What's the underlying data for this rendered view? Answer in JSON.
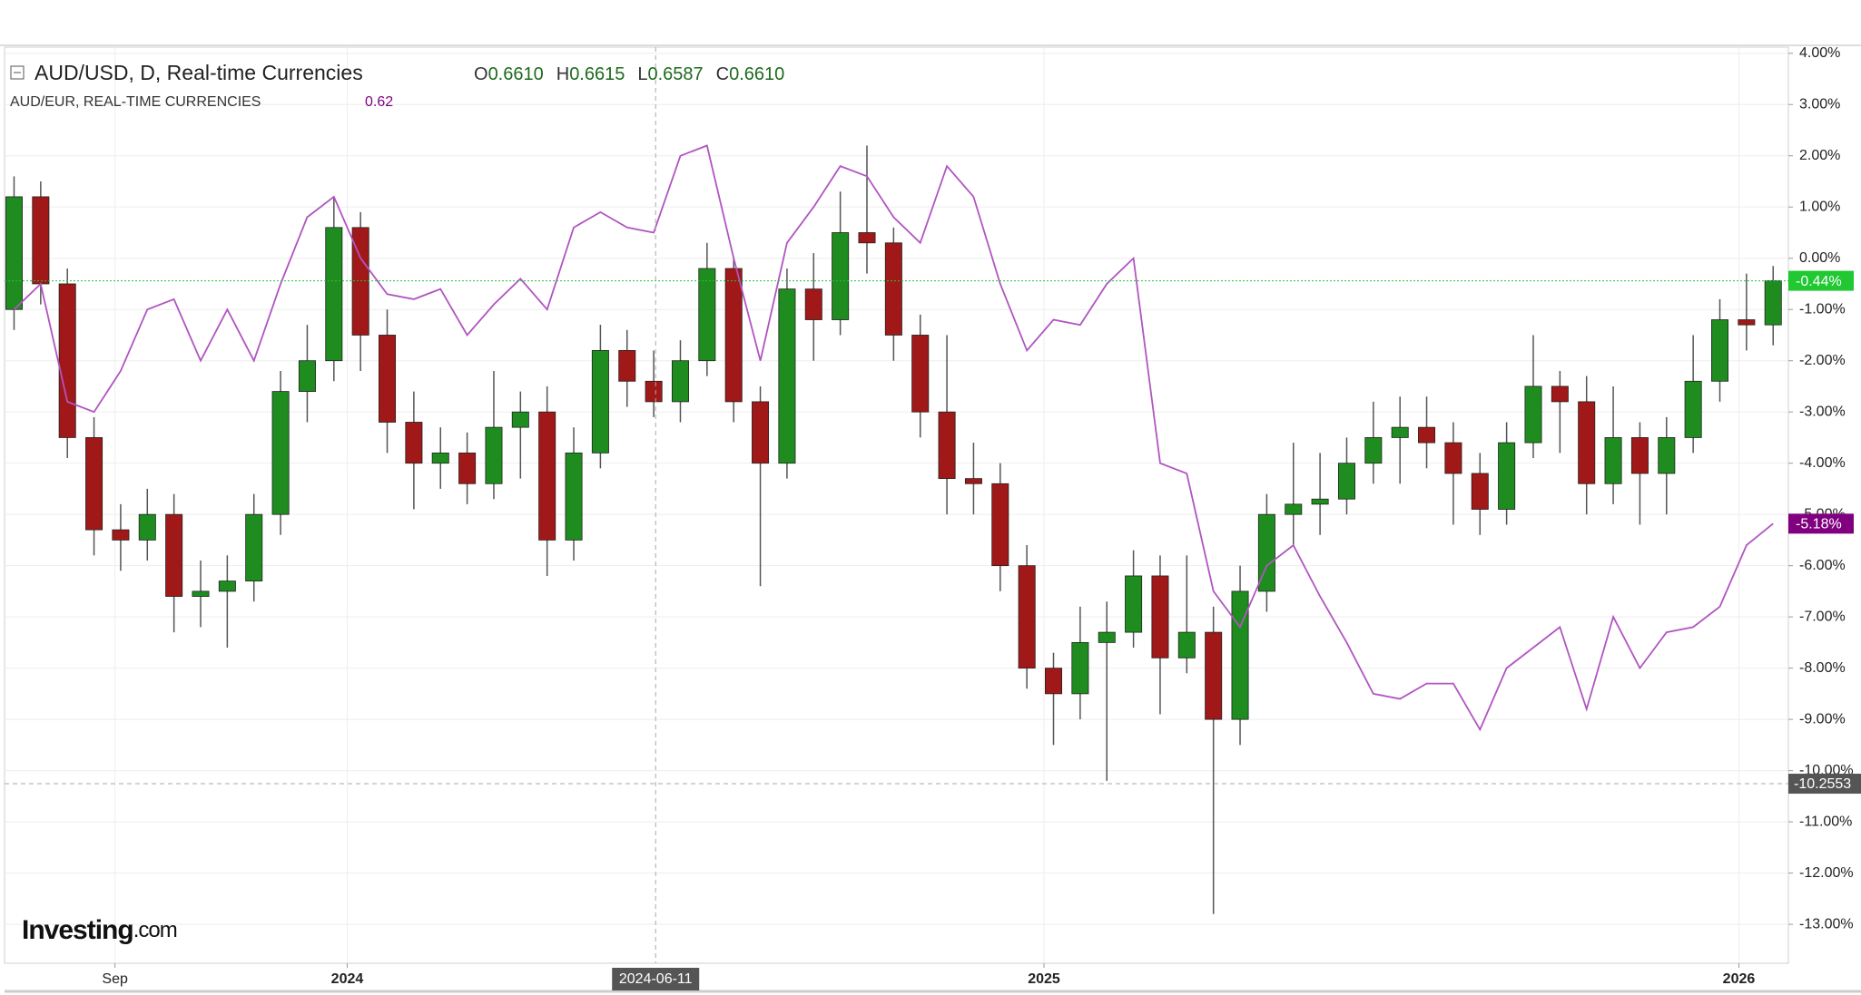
{
  "chart_data": {
    "type": "candlestick",
    "x": [
      "2023-07-10",
      "2023-07-24",
      "2023-08-07",
      "2023-08-21",
      "2023-09-04",
      "2023-09-18",
      "2023-10-02",
      "2023-10-16",
      "2023-10-30",
      "2023-11-13",
      "2023-11-27",
      "2023-12-11",
      "2023-12-25",
      "2024-01-08",
      "2024-01-22",
      "2024-02-05",
      "2024-02-19",
      "2024-03-04",
      "2024-03-18",
      "2024-04-01",
      "2024-04-15",
      "2024-04-29",
      "2024-05-13",
      "2024-05-27",
      "2024-06-10",
      "2024-06-24",
      "2024-07-08",
      "2024-07-22",
      "2024-08-05",
      "2024-08-19",
      "2024-09-02",
      "2024-09-16",
      "2024-09-30",
      "2024-10-14",
      "2024-10-28",
      "2024-11-11",
      "2024-11-25",
      "2024-12-09",
      "2024-12-23",
      "2025-01-06",
      "2025-01-20",
      "2025-02-03",
      "2025-02-17",
      "2025-03-03",
      "2025-03-17",
      "2025-03-31",
      "2025-04-14",
      "2025-04-28",
      "2025-05-12",
      "2025-05-26",
      "2025-06-09",
      "2025-06-23",
      "2025-07-07",
      "2025-07-21",
      "2025-08-04",
      "2025-08-18",
      "2025-09-01",
      "2025-09-15",
      "2025-09-29",
      "2025-10-13",
      "2025-10-27",
      "2025-11-10",
      "2025-11-24",
      "2025-12-08",
      "2025-12-22",
      "2026-01-05",
      "2026-01-19"
    ],
    "series": [
      {
        "name": "AUD/USD, D, Real-time Currencies",
        "up_color": "#1e8c1e",
        "down_color": "#a01818",
        "open": [
          -1.0,
          1.2,
          -0.5,
          -3.5,
          -5.3,
          -5.5,
          -5.0,
          -6.6,
          -6.5,
          -6.3,
          -5.0,
          -2.6,
          -2.0,
          0.6,
          -1.5,
          -3.2,
          -4.0,
          -3.8,
          -4.4,
          -3.3,
          -3.0,
          -5.5,
          -3.8,
          -1.8,
          -2.4,
          -2.8,
          -2.0,
          -0.2,
          -2.8,
          -4.0,
          -0.6,
          -1.2,
          0.5,
          0.3,
          -1.5,
          -3.0,
          -4.3,
          -4.4,
          -6.0,
          -8.0,
          -8.5,
          -7.5,
          -7.3,
          -6.2,
          -7.8,
          -7.3,
          -9.0,
          -6.5,
          -5.0,
          -4.8,
          -4.7,
          -4.0,
          -3.5,
          -3.3,
          -3.6,
          -4.2,
          -4.9,
          -3.6,
          -2.5,
          -2.8,
          -4.4,
          -3.5,
          -4.2,
          -3.5,
          -2.4,
          -1.2,
          -1.3
        ],
        "high": [
          1.6,
          1.5,
          -0.2,
          -3.1,
          -4.8,
          -4.5,
          -4.6,
          -5.9,
          -5.8,
          -4.6,
          -2.2,
          -1.3,
          1.2,
          0.9,
          -1.0,
          -2.6,
          -3.3,
          -3.4,
          -2.2,
          -2.6,
          -2.5,
          -3.3,
          -1.3,
          -1.4,
          -1.8,
          -1.6,
          0.3,
          0.0,
          -2.5,
          -0.2,
          0.1,
          1.3,
          2.2,
          0.6,
          -1.1,
          -1.5,
          -3.6,
          -4.0,
          -5.6,
          -7.7,
          -6.8,
          -6.7,
          -5.7,
          -5.8,
          -5.8,
          -6.8,
          -6.0,
          -4.6,
          -3.6,
          -3.8,
          -3.5,
          -2.8,
          -2.7,
          -2.7,
          -3.2,
          -3.8,
          -3.2,
          -1.5,
          -2.2,
          -2.3,
          -2.5,
          -3.2,
          -3.1,
          -1.5,
          -0.8,
          -0.3,
          -0.15
        ],
        "low": [
          -1.4,
          -0.9,
          -3.9,
          -5.8,
          -6.1,
          -5.9,
          -7.3,
          -7.2,
          -7.6,
          -6.7,
          -5.4,
          -3.2,
          -2.4,
          -2.2,
          -3.8,
          -4.9,
          -4.5,
          -4.8,
          -4.7,
          -4.3,
          -6.2,
          -5.9,
          -4.1,
          -2.9,
          -3.1,
          -3.2,
          -2.3,
          -3.2,
          -6.4,
          -4.3,
          -2.0,
          -1.5,
          -0.3,
          -2.0,
          -3.5,
          -5.0,
          -5.0,
          -6.5,
          -8.4,
          -9.5,
          -9.0,
          -10.2,
          -7.6,
          -8.9,
          -8.1,
          -12.8,
          -9.5,
          -6.9,
          -5.6,
          -5.4,
          -5.0,
          -4.4,
          -4.4,
          -4.1,
          -5.2,
          -5.4,
          -5.2,
          -3.9,
          -3.8,
          -5.0,
          -4.8,
          -5.2,
          -5.0,
          -3.8,
          -2.8,
          -1.8,
          -1.7
        ],
        "close": [
          1.2,
          -0.5,
          -3.5,
          -5.3,
          -5.5,
          -5.0,
          -6.6,
          -6.5,
          -6.3,
          -5.0,
          -2.6,
          -2.0,
          0.6,
          -1.5,
          -3.2,
          -4.0,
          -3.8,
          -4.4,
          -3.3,
          -3.0,
          -5.5,
          -3.8,
          -1.8,
          -2.4,
          -2.8,
          -2.0,
          -0.2,
          -2.8,
          -4.0,
          -0.6,
          -1.2,
          0.5,
          0.3,
          -1.5,
          -3.0,
          -4.3,
          -4.4,
          -6.0,
          -8.0,
          -8.5,
          -7.5,
          -7.3,
          -6.2,
          -7.8,
          -7.3,
          -9.0,
          -6.5,
          -5.0,
          -4.8,
          -4.7,
          -4.0,
          -3.5,
          -3.3,
          -3.6,
          -4.2,
          -4.9,
          -3.6,
          -2.5,
          -2.8,
          -4.4,
          -3.5,
          -4.2,
          -3.5,
          -2.4,
          -1.2,
          -1.3,
          -0.44
        ],
        "readout": [
          {
            "label": "O",
            "value": "0.6610"
          },
          {
            "label": "H",
            "value": "0.6615"
          },
          {
            "label": "L",
            "value": "0.6587"
          },
          {
            "label": "C",
            "value": "0.6610"
          }
        ]
      },
      {
        "name": "AUD/EUR, REAL-TIME CURRENCIES",
        "color": "#b055c0",
        "type": "line",
        "values": [
          -1.0,
          -0.5,
          -2.8,
          -3.0,
          -2.2,
          -1.0,
          -0.8,
          -2.0,
          -1.0,
          -2.0,
          -0.5,
          0.8,
          1.2,
          0.0,
          -0.7,
          -0.8,
          -0.6,
          -1.5,
          -0.9,
          -0.4,
          -1.0,
          0.6,
          0.9,
          0.6,
          0.5,
          2.0,
          2.2,
          0.0,
          -2.0,
          0.3,
          1.0,
          1.8,
          1.6,
          0.8,
          0.3,
          1.8,
          1.2,
          -0.5,
          -1.8,
          -1.2,
          -1.3,
          -0.5,
          0.0,
          -4.0,
          -4.2,
          -6.5,
          -7.2,
          -6.0,
          -5.6,
          -6.6,
          -7.5,
          -8.5,
          -8.6,
          -8.3,
          -8.3,
          -9.2,
          -8.0,
          -7.6,
          -7.2,
          -8.8,
          -7.0,
          -8.0,
          -7.3,
          -7.2,
          -6.8,
          -5.6,
          -5.18
        ],
        "readout": "0.62"
      }
    ],
    "xlim": [
      "2023-07-05",
      "2026-01-27"
    ],
    "xticks": [
      {
        "value": "2023-09-01",
        "label": "Sep"
      },
      {
        "value": "2024-01-01",
        "label": "2024"
      },
      {
        "value": "2025-01-01",
        "label": "2025"
      },
      {
        "value": "2026-01-01",
        "label": "2026"
      }
    ],
    "ylim": [
      -13.76,
      4.12
    ],
    "yticks": [
      {
        "value": 4,
        "label": "4.00%"
      },
      {
        "value": 3,
        "label": "3.00%"
      },
      {
        "value": 2,
        "label": "2.00%"
      },
      {
        "value": 1,
        "label": "1.00%"
      },
      {
        "value": 0,
        "label": "0.00%"
      },
      {
        "value": -1,
        "label": "-1.00%"
      },
      {
        "value": -2,
        "label": "-2.00%"
      },
      {
        "value": -3,
        "label": "-3.00%"
      },
      {
        "value": -4,
        "label": "-4.00%"
      },
      {
        "value": -5,
        "label": "-5.00%"
      },
      {
        "value": -6,
        "label": "-6.00%"
      },
      {
        "value": -7,
        "label": "-7.00%"
      },
      {
        "value": -8,
        "label": "-8.00%"
      },
      {
        "value": -9,
        "label": "-9.00%"
      },
      {
        "value": -10,
        "label": "-10.00%"
      },
      {
        "value": -11,
        "label": "-11.00%"
      },
      {
        "value": -12,
        "label": "-12.00%"
      },
      {
        "value": -13,
        "label": "-13.00%"
      }
    ],
    "grid": true,
    "price_labels": [
      {
        "value": -0.44,
        "label": "-0.44%",
        "color": "#20c832"
      },
      {
        "value": -5.18,
        "label": "-5.18%",
        "color": "#800080"
      }
    ],
    "crosshair": {
      "x": "2024-06-11",
      "y": {
        "value": -10.2553,
        "label": "-10.2553"
      },
      "color": "#555555"
    },
    "watermark": "Investing",
    "watermark_suffix": ".com"
  }
}
